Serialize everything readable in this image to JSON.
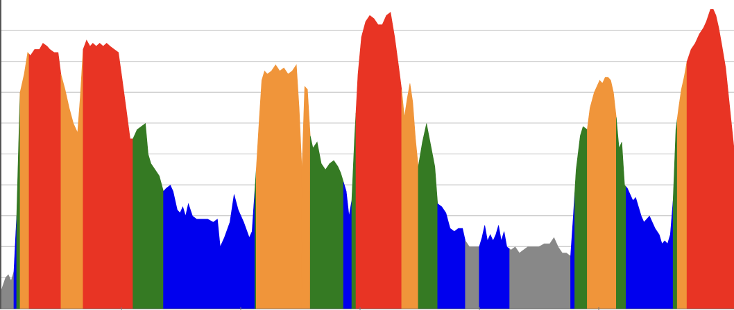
{
  "chart_data": {
    "type": "area",
    "title": "",
    "xlabel": "",
    "ylabel": "",
    "grid": true,
    "legend": "none",
    "xlim": [
      0,
      1058
    ],
    "ylim": [
      0,
      10
    ],
    "colors": {
      "gray": "#888888",
      "blue": "#0000ee",
      "green": "#357a23",
      "orange": "#f0953a",
      "red": "#e83424"
    },
    "profile": [
      [
        0,
        0.6
      ],
      [
        6,
        1.0
      ],
      [
        10,
        1.1
      ],
      [
        14,
        0.9
      ],
      [
        18,
        1.2
      ],
      [
        22,
        3.0
      ],
      [
        27,
        7.0
      ],
      [
        33,
        7.6
      ],
      [
        38,
        8.3
      ],
      [
        42,
        8.2
      ],
      [
        48,
        8.4
      ],
      [
        55,
        8.4
      ],
      [
        60,
        8.6
      ],
      [
        66,
        8.5
      ],
      [
        70,
        8.4
      ],
      [
        76,
        8.3
      ],
      [
        82,
        8.3
      ],
      [
        86,
        7.6
      ],
      [
        92,
        7.1
      ],
      [
        98,
        6.5
      ],
      [
        104,
        6.0
      ],
      [
        110,
        5.7
      ],
      [
        114,
        6.9
      ],
      [
        118,
        8.4
      ],
      [
        123,
        8.7
      ],
      [
        128,
        8.5
      ],
      [
        132,
        8.6
      ],
      [
        137,
        8.5
      ],
      [
        142,
        8.6
      ],
      [
        147,
        8.5
      ],
      [
        152,
        8.6
      ],
      [
        157,
        8.5
      ],
      [
        163,
        8.4
      ],
      [
        169,
        8.3
      ],
      [
        174,
        7.5
      ],
      [
        180,
        6.5
      ],
      [
        186,
        5.5
      ],
      [
        190,
        5.5
      ],
      [
        196,
        5.8
      ],
      [
        202,
        5.9
      ],
      [
        208,
        6.0
      ],
      [
        212,
        5.0
      ],
      [
        216,
        4.7
      ],
      [
        222,
        4.5
      ],
      [
        228,
        4.3
      ],
      [
        234,
        3.8
      ],
      [
        238,
        3.9
      ],
      [
        244,
        4.0
      ],
      [
        248,
        3.8
      ],
      [
        254,
        3.2
      ],
      [
        258,
        3.1
      ],
      [
        262,
        3.3
      ],
      [
        266,
        3.0
      ],
      [
        270,
        3.4
      ],
      [
        276,
        3.0
      ],
      [
        282,
        2.9
      ],
      [
        290,
        2.9
      ],
      [
        298,
        2.9
      ],
      [
        306,
        2.8
      ],
      [
        312,
        2.9
      ],
      [
        316,
        2.0
      ],
      [
        322,
        2.3
      ],
      [
        330,
        2.8
      ],
      [
        336,
        3.7
      ],
      [
        342,
        3.2
      ],
      [
        350,
        2.8
      ],
      [
        358,
        2.3
      ],
      [
        362,
        2.5
      ],
      [
        368,
        4.5
      ],
      [
        372,
        6.0
      ],
      [
        376,
        7.4
      ],
      [
        380,
        7.7
      ],
      [
        384,
        7.6
      ],
      [
        390,
        7.7
      ],
      [
        396,
        7.9
      ],
      [
        402,
        7.7
      ],
      [
        408,
        7.8
      ],
      [
        414,
        7.6
      ],
      [
        420,
        7.7
      ],
      [
        426,
        7.9
      ],
      [
        430,
        6.5
      ],
      [
        434,
        4.5
      ],
      [
        438,
        7.2
      ],
      [
        442,
        7.1
      ],
      [
        446,
        5.6
      ],
      [
        450,
        5.2
      ],
      [
        456,
        5.4
      ],
      [
        462,
        4.7
      ],
      [
        468,
        4.5
      ],
      [
        474,
        4.7
      ],
      [
        480,
        4.8
      ],
      [
        486,
        4.6
      ],
      [
        490,
        4.4
      ],
      [
        494,
        4.1
      ],
      [
        498,
        3.8
      ],
      [
        502,
        3.0
      ],
      [
        506,
        3.5
      ],
      [
        510,
        5.5
      ],
      [
        515,
        7.6
      ],
      [
        520,
        8.8
      ],
      [
        526,
        9.3
      ],
      [
        532,
        9.5
      ],
      [
        538,
        9.4
      ],
      [
        544,
        9.2
      ],
      [
        550,
        9.2
      ],
      [
        556,
        9.5
      ],
      [
        562,
        9.6
      ],
      [
        568,
        8.8
      ],
      [
        574,
        7.8
      ],
      [
        578,
        7.1
      ],
      [
        582,
        6.2
      ],
      [
        586,
        6.8
      ],
      [
        590,
        7.3
      ],
      [
        594,
        6.7
      ],
      [
        598,
        5.5
      ],
      [
        602,
        4.6
      ],
      [
        608,
        5.4
      ],
      [
        614,
        6.0
      ],
      [
        620,
        5.3
      ],
      [
        626,
        4.6
      ],
      [
        630,
        3.4
      ],
      [
        636,
        3.3
      ],
      [
        642,
        3.1
      ],
      [
        648,
        2.6
      ],
      [
        654,
        2.5
      ],
      [
        660,
        2.6
      ],
      [
        666,
        2.6
      ],
      [
        670,
        2.2
      ],
      [
        676,
        2.0
      ],
      [
        682,
        2.0
      ],
      [
        690,
        2.0
      ],
      [
        694,
        2.3
      ],
      [
        698,
        2.7
      ],
      [
        702,
        2.2
      ],
      [
        706,
        2.4
      ],
      [
        710,
        2.2
      ],
      [
        714,
        2.4
      ],
      [
        718,
        2.7
      ],
      [
        722,
        2.2
      ],
      [
        726,
        2.5
      ],
      [
        730,
        2.0
      ],
      [
        736,
        1.9
      ],
      [
        742,
        2.0
      ],
      [
        748,
        1.8
      ],
      [
        754,
        1.9
      ],
      [
        760,
        2.0
      ],
      [
        768,
        2.0
      ],
      [
        776,
        2.0
      ],
      [
        784,
        2.1
      ],
      [
        792,
        2.1
      ],
      [
        798,
        2.3
      ],
      [
        804,
        2.0
      ],
      [
        810,
        1.8
      ],
      [
        816,
        1.8
      ],
      [
        822,
        1.7
      ],
      [
        826,
        3.0
      ],
      [
        830,
        4.5
      ],
      [
        836,
        5.6
      ],
      [
        840,
        5.9
      ],
      [
        846,
        5.8
      ],
      [
        850,
        6.5
      ],
      [
        856,
        7.0
      ],
      [
        860,
        7.2
      ],
      [
        864,
        7.4
      ],
      [
        868,
        7.3
      ],
      [
        872,
        7.5
      ],
      [
        876,
        7.5
      ],
      [
        880,
        7.4
      ],
      [
        884,
        7.0
      ],
      [
        888,
        6.2
      ],
      [
        892,
        5.2
      ],
      [
        896,
        5.4
      ],
      [
        900,
        4.0
      ],
      [
        904,
        3.9
      ],
      [
        908,
        3.7
      ],
      [
        912,
        3.5
      ],
      [
        916,
        3.6
      ],
      [
        920,
        3.3
      ],
      [
        924,
        3.0
      ],
      [
        928,
        2.8
      ],
      [
        932,
        2.9
      ],
      [
        936,
        3.0
      ],
      [
        940,
        2.8
      ],
      [
        944,
        2.6
      ],
      [
        950,
        2.4
      ],
      [
        954,
        2.1
      ],
      [
        958,
        2.2
      ],
      [
        962,
        2.1
      ],
      [
        966,
        2.4
      ],
      [
        970,
        3.5
      ],
      [
        974,
        5.8
      ],
      [
        978,
        6.5
      ],
      [
        982,
        7.1
      ],
      [
        986,
        7.5
      ],
      [
        990,
        8.0
      ],
      [
        996,
        8.4
      ],
      [
        1002,
        8.6
      ],
      [
        1008,
        8.9
      ],
      [
        1014,
        9.1
      ],
      [
        1018,
        9.3
      ],
      [
        1024,
        9.7
      ],
      [
        1028,
        9.7
      ],
      [
        1032,
        9.5
      ],
      [
        1036,
        9.1
      ],
      [
        1040,
        8.6
      ],
      [
        1046,
        7.8
      ],
      [
        1052,
        6.5
      ],
      [
        1058,
        5.2
      ]
    ],
    "bands": [
      {
        "x0": 0,
        "x1": 18,
        "color": "gray"
      },
      {
        "x0": 18,
        "x1": 22,
        "color": "blue"
      },
      {
        "x0": 22,
        "x1": 27,
        "color": "green"
      },
      {
        "x0": 27,
        "x1": 40,
        "color": "orange"
      },
      {
        "x0": 40,
        "x1": 86,
        "color": "red"
      },
      {
        "x0": 86,
        "x1": 118,
        "color": "orange"
      },
      {
        "x0": 118,
        "x1": 190,
        "color": "red"
      },
      {
        "x0": 190,
        "x1": 234,
        "color": "green"
      },
      {
        "x0": 234,
        "x1": 366,
        "color": "blue"
      },
      {
        "x0": 366,
        "x1": 368,
        "color": "green"
      },
      {
        "x0": 368,
        "x1": 434,
        "color": "orange"
      },
      {
        "x0": 434,
        "x1": 446,
        "color": "orange"
      },
      {
        "x0": 446,
        "x1": 494,
        "color": "green"
      },
      {
        "x0": 494,
        "x1": 506,
        "color": "blue"
      },
      {
        "x0": 506,
        "x1": 512,
        "color": "green"
      },
      {
        "x0": 512,
        "x1": 578,
        "color": "red"
      },
      {
        "x0": 578,
        "x1": 602,
        "color": "orange"
      },
      {
        "x0": 602,
        "x1": 630,
        "color": "green"
      },
      {
        "x0": 630,
        "x1": 670,
        "color": "blue"
      },
      {
        "x0": 670,
        "x1": 690,
        "color": "gray"
      },
      {
        "x0": 690,
        "x1": 734,
        "color": "blue"
      },
      {
        "x0": 734,
        "x1": 822,
        "color": "gray"
      },
      {
        "x0": 822,
        "x1": 828,
        "color": "blue"
      },
      {
        "x0": 828,
        "x1": 846,
        "color": "green"
      },
      {
        "x0": 846,
        "x1": 888,
        "color": "orange"
      },
      {
        "x0": 888,
        "x1": 902,
        "color": "green"
      },
      {
        "x0": 902,
        "x1": 970,
        "color": "blue"
      },
      {
        "x0": 970,
        "x1": 976,
        "color": "green"
      },
      {
        "x0": 976,
        "x1": 990,
        "color": "orange"
      },
      {
        "x0": 990,
        "x1": 1058,
        "color": "red"
      }
    ]
  }
}
